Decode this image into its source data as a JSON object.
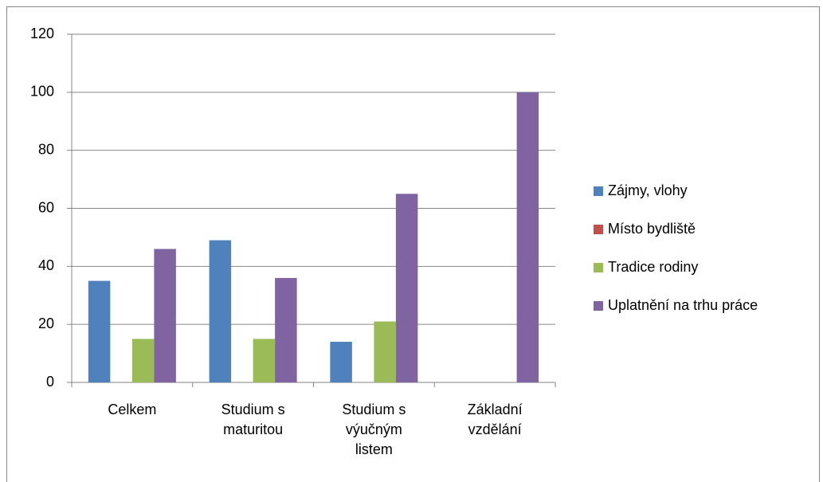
{
  "chart_data": {
    "type": "bar",
    "categories": [
      "Celkem",
      "Studium s maturitou",
      "Studium s výučným listem",
      "Základní vzdělání"
    ],
    "series": [
      {
        "name": "Zájmy, vlohy",
        "color": "#4f81bd",
        "values": [
          35,
          49,
          14,
          0
        ]
      },
      {
        "name": "Místo bydliště",
        "color": "#c0504d",
        "values": [
          0,
          0,
          0,
          0
        ]
      },
      {
        "name": "Tradice rodiny",
        "color": "#9bbb59",
        "values": [
          15,
          15,
          21,
          0
        ]
      },
      {
        "name": "Uplatnění na trhu práce",
        "color": "#8064a2",
        "values": [
          46,
          36,
          65,
          100
        ]
      }
    ],
    "ylim": [
      0,
      120
    ],
    "yticks": [
      0,
      20,
      40,
      60,
      80,
      100,
      120
    ],
    "grid": true,
    "legend": "right"
  }
}
